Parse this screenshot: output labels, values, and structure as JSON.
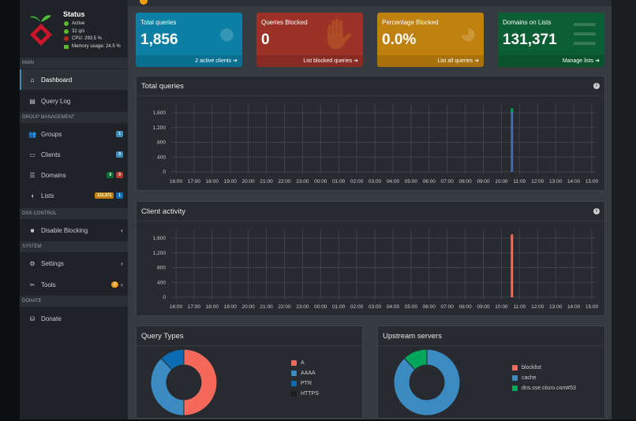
{
  "sidebar": {
    "status": {
      "title": "Status",
      "active": "Active",
      "rate": "32 q/s",
      "cpu": "CPU: 293.5 %",
      "memory": "Memory usage: 24.5 %"
    },
    "sections": {
      "main": "MAIN",
      "group": "GROUP MANAGEMENT",
      "dns": "DNS CONTROL",
      "system": "SYSTEM",
      "donate": "DONATE"
    },
    "items": [
      {
        "label": "Dashboard"
      },
      {
        "label": "Query Log"
      },
      {
        "label": "Groups",
        "badge": "1"
      },
      {
        "label": "Clients",
        "badge": "0"
      },
      {
        "label": "Domains",
        "badge": "0",
        "badge2": "0"
      },
      {
        "label": "Lists",
        "badge": "131,371",
        "badge2": "1"
      },
      {
        "label": "Disable Blocking"
      },
      {
        "label": "Settings"
      },
      {
        "label": "Tools",
        "badge": "2"
      },
      {
        "label": "Donate"
      }
    ]
  },
  "header": {
    "notification_count": "1"
  },
  "stats": [
    {
      "title": "Total queries",
      "value": "1,856",
      "footer": "2 active clients",
      "color": "#0b7fa4"
    },
    {
      "title": "Queries Blocked",
      "value": "0",
      "footer": "List blocked queries",
      "color": "#9b3127"
    },
    {
      "title": "Percentage Blocked",
      "value": "0.0%",
      "footer": "List all queries",
      "color": "#c0800d"
    },
    {
      "title": "Domains on Lists",
      "value": "131,371",
      "footer": "Manage lists",
      "color": "#0b5e33"
    }
  ],
  "chart_data": [
    {
      "type": "bar",
      "title": "Total queries",
      "x_ticks": [
        "16:00",
        "17:00",
        "18:00",
        "19:00",
        "20:00",
        "21:00",
        "22:00",
        "23:00",
        "00:00",
        "01:00",
        "02:00",
        "03:00",
        "04:00",
        "05:00",
        "06:00",
        "07:00",
        "08:00",
        "09:00",
        "10:00",
        "11:00",
        "12:00",
        "13:00",
        "14:00",
        "15:00"
      ],
      "y_ticks": [
        0,
        400,
        800,
        1200,
        1600
      ],
      "ylim": [
        0,
        1700
      ],
      "stacked": true,
      "grid": true,
      "series": [
        {
          "color": "#4a69a8",
          "points": [
            [
              "10:35",
              1620
            ]
          ]
        },
        {
          "color": "#00a65a",
          "points": [
            [
              "10:35",
              100
            ]
          ]
        }
      ]
    },
    {
      "type": "bar",
      "title": "Client activity",
      "x_ticks": [
        "16:00",
        "17:00",
        "18:00",
        "19:00",
        "20:00",
        "21:00",
        "22:00",
        "23:00",
        "00:00",
        "01:00",
        "02:00",
        "03:00",
        "04:00",
        "05:00",
        "06:00",
        "07:00",
        "08:00",
        "09:00",
        "10:00",
        "11:00",
        "12:00",
        "13:00",
        "14:00",
        "15:00"
      ],
      "y_ticks": [
        0,
        400,
        800,
        1200,
        1600
      ],
      "ylim": [
        0,
        1700
      ],
      "stacked": true,
      "grid": true,
      "series": [
        {
          "color": "#f26c5a",
          "points": [
            [
              "10:35",
              1700
            ]
          ]
        }
      ]
    },
    {
      "type": "pie",
      "title": "Query Types",
      "labels": [
        "A",
        "AAAA",
        "PTR",
        "HTTPS"
      ],
      "values": [
        50,
        38,
        12,
        0
      ],
      "colors": [
        "#f4695a",
        "#3b8bc2",
        "#0a6db3",
        "#1c1c1c"
      ]
    },
    {
      "type": "pie",
      "title": "Upstream servers",
      "labels": [
        "blocklist",
        "cache",
        "dns.sse.cisco.com#53"
      ],
      "values": [
        0,
        88,
        12
      ],
      "colors": [
        "#f4695a",
        "#3b8bc2",
        "#00a65a"
      ]
    }
  ]
}
